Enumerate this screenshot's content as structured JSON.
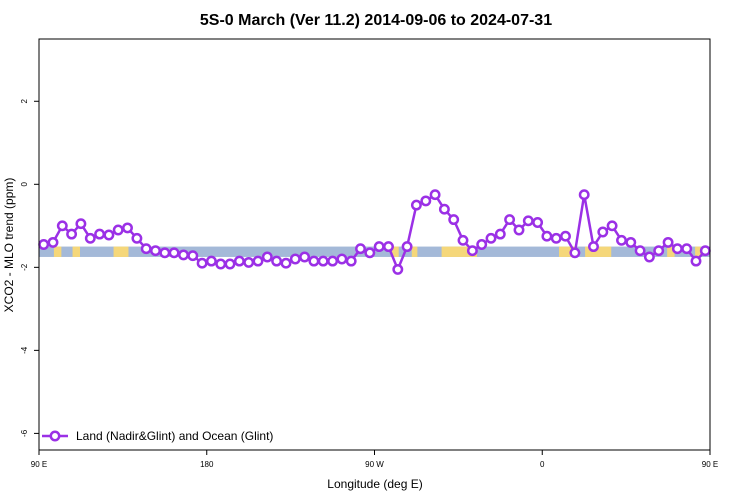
{
  "chart_data": {
    "type": "line",
    "title": "5S-0 March (Ver 11.2)   2014-09-06 to 2024-07-31",
    "xlabel": "Longitude (deg E)",
    "ylabel": "XCO2 - MLO trend (ppm)",
    "xlim": [
      90,
      450
    ],
    "ylim": [
      -6.4,
      3.5
    ],
    "grid": false,
    "legend_position": "bottom-left",
    "xticks": [
      {
        "value": 90,
        "label": "90 E"
      },
      {
        "value": 180,
        "label": "180"
      },
      {
        "value": 270,
        "label": "90 W"
      },
      {
        "value": 360,
        "label": "0"
      },
      {
        "value": 450,
        "label": "90 E"
      },
      {
        "value": 540,
        "label": "180"
      }
    ],
    "yticks": [
      {
        "value": 2,
        "label": "2"
      },
      {
        "value": 0,
        "label": "0"
      },
      {
        "value": -2,
        "label": "-2"
      },
      {
        "value": -4,
        "label": "-4"
      },
      {
        "value": -6,
        "label": "-6"
      }
    ],
    "land_band": {
      "y_top": -1.5,
      "y_bottom": -1.75,
      "ocean_color": "#a4b9d8",
      "land_color": "#f5d77a"
    },
    "land_segments": [
      [
        98,
        102
      ],
      [
        108,
        112
      ],
      [
        130,
        138
      ],
      [
        279,
        283
      ],
      [
        290,
        293
      ],
      [
        306,
        325
      ],
      [
        369,
        378
      ],
      [
        383,
        397
      ],
      [
        427,
        431
      ],
      [
        442,
        445
      ],
      [
        456,
        462
      ],
      [
        492,
        496
      ]
    ],
    "series": [
      {
        "name": "Land (Nadir&Glint) and Ocean (Glint)",
        "color": "#9b30e6",
        "x": [
          92.5,
          97.5,
          102.5,
          107.5,
          112.5,
          117.5,
          122.5,
          127.5,
          132.5,
          137.5,
          142.5,
          147.5,
          152.5,
          157.5,
          162.5,
          167.5,
          172.5,
          177.5,
          182.5,
          187.5,
          192.5,
          197.5,
          202.5,
          207.5,
          212.5,
          217.5,
          222.5,
          227.5,
          232.5,
          237.5,
          242.5,
          247.5,
          252.5,
          257.5,
          262.5,
          267.5,
          272.5,
          277.5,
          282.5,
          287.5,
          292.5,
          297.5,
          302.5,
          307.5,
          312.5,
          317.5,
          322.5,
          327.5,
          332.5,
          337.5,
          342.5,
          347.5,
          352.5,
          357.5,
          362.5,
          367.5,
          372.5,
          377.5,
          382.5,
          387.5,
          392.5,
          397.5,
          402.5,
          407.5,
          412.5,
          417.5,
          422.5,
          427.5,
          432.5,
          437.5,
          442.5,
          447.5
        ],
        "values": [
          -1.45,
          -1.4,
          -1.0,
          -1.2,
          -0.95,
          -1.3,
          -1.2,
          -1.22,
          -1.1,
          -1.05,
          -1.3,
          -1.55,
          -1.6,
          -1.65,
          -1.65,
          -1.7,
          -1.72,
          -1.9,
          -1.85,
          -1.92,
          -1.92,
          -1.85,
          -1.88,
          -1.85,
          -1.75,
          -1.85,
          -1.9,
          -1.8,
          -1.75,
          -1.85,
          -1.85,
          -1.85,
          -1.8,
          -1.85,
          -1.55,
          -1.65,
          -1.5,
          -1.5,
          -2.05,
          -1.5,
          -0.5,
          -0.4,
          -0.25,
          -0.6,
          -0.85,
          -1.35,
          -1.6,
          -1.45,
          -1.3,
          -1.2,
          -0.85,
          -1.1,
          -0.88,
          -0.92,
          -1.25,
          -1.3,
          -1.25,
          -1.65,
          -0.25,
          -1.5,
          -1.15,
          -1.0,
          -1.35,
          -1.4,
          -1.6,
          -1.75,
          -1.6,
          -1.4,
          -1.55,
          -1.55,
          -1.85,
          -1.6
        ]
      }
    ]
  }
}
